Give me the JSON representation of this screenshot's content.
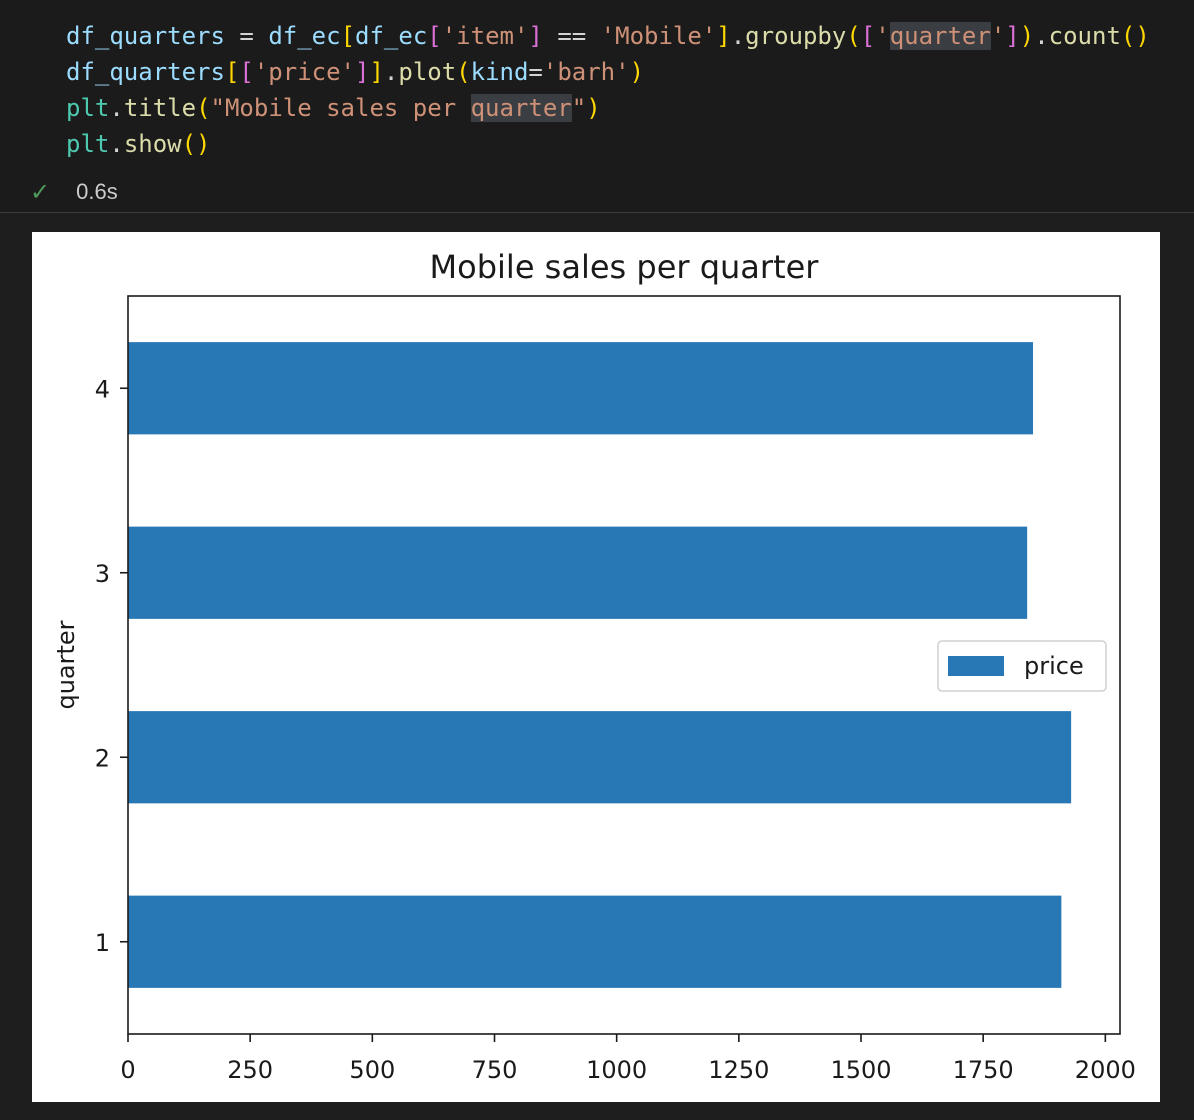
{
  "code_lines": [
    [
      {
        "t": "df_quarters",
        "c": "tok-var"
      },
      {
        "t": " = ",
        "c": "tok-op"
      },
      {
        "t": "df_ec",
        "c": "tok-var"
      },
      {
        "t": "[",
        "c": "tok-br1"
      },
      {
        "t": "df_ec",
        "c": "tok-var"
      },
      {
        "t": "[",
        "c": "tok-br2"
      },
      {
        "t": "'item'",
        "c": "tok-str"
      },
      {
        "t": "]",
        "c": "tok-br2"
      },
      {
        "t": " == ",
        "c": "tok-op"
      },
      {
        "t": "'Mobile'",
        "c": "tok-str"
      },
      {
        "t": "]",
        "c": "tok-br1"
      },
      {
        "t": ".",
        "c": "tok-op"
      },
      {
        "t": "groupby",
        "c": "tok-fn"
      },
      {
        "t": "(",
        "c": "tok-br1"
      },
      {
        "t": "[",
        "c": "tok-br2"
      },
      {
        "t": "'",
        "c": "tok-str"
      },
      {
        "t": "quarter",
        "c": "tok-str hl"
      },
      {
        "t": "'",
        "c": "tok-str"
      },
      {
        "t": "]",
        "c": "tok-br2"
      },
      {
        "t": ")",
        "c": "tok-br1"
      },
      {
        "t": ".",
        "c": "tok-op"
      },
      {
        "t": "count",
        "c": "tok-fn"
      },
      {
        "t": "()",
        "c": "tok-br1"
      }
    ],
    [
      {
        "t": "df_quarters",
        "c": "tok-var"
      },
      {
        "t": "[",
        "c": "tok-br1"
      },
      {
        "t": "[",
        "c": "tok-br2"
      },
      {
        "t": "'price'",
        "c": "tok-str"
      },
      {
        "t": "]",
        "c": "tok-br2"
      },
      {
        "t": "]",
        "c": "tok-br1"
      },
      {
        "t": ".",
        "c": "tok-op"
      },
      {
        "t": "plot",
        "c": "tok-fn"
      },
      {
        "t": "(",
        "c": "tok-br1"
      },
      {
        "t": "kind",
        "c": "tok-var"
      },
      {
        "t": "=",
        "c": "tok-op"
      },
      {
        "t": "'barh'",
        "c": "tok-str"
      },
      {
        "t": ")",
        "c": "tok-br1"
      }
    ],
    [
      {
        "t": "plt",
        "c": "tok-mod"
      },
      {
        "t": ".",
        "c": "tok-op"
      },
      {
        "t": "title",
        "c": "tok-fn"
      },
      {
        "t": "(",
        "c": "tok-br1"
      },
      {
        "t": "\"Mobile sales per ",
        "c": "tok-str"
      },
      {
        "t": "quarter",
        "c": "tok-str hl"
      },
      {
        "t": "\"",
        "c": "tok-str"
      },
      {
        "t": ")",
        "c": "tok-br1"
      }
    ],
    [
      {
        "t": "plt",
        "c": "tok-mod"
      },
      {
        "t": ".",
        "c": "tok-op"
      },
      {
        "t": "show",
        "c": "tok-fn"
      },
      {
        "t": "()",
        "c": "tok-br1"
      }
    ]
  ],
  "status": {
    "icon": "check-icon",
    "time": "0.6s"
  },
  "chart_data": {
    "type": "bar",
    "orientation": "horizontal",
    "title": "Mobile sales per quarter",
    "xlabel": "",
    "ylabel": "quarter",
    "categories": [
      "1",
      "2",
      "3",
      "4"
    ],
    "series": [
      {
        "name": "price",
        "values": [
          1910,
          1930,
          1840,
          1852
        ],
        "color": "#2778b4"
      }
    ],
    "xlim": [
      0,
      2030
    ],
    "xticks": [
      0,
      250,
      500,
      750,
      1000,
      1250,
      1500,
      1750,
      2000
    ],
    "legend_position": "center-right",
    "grid": false
  }
}
